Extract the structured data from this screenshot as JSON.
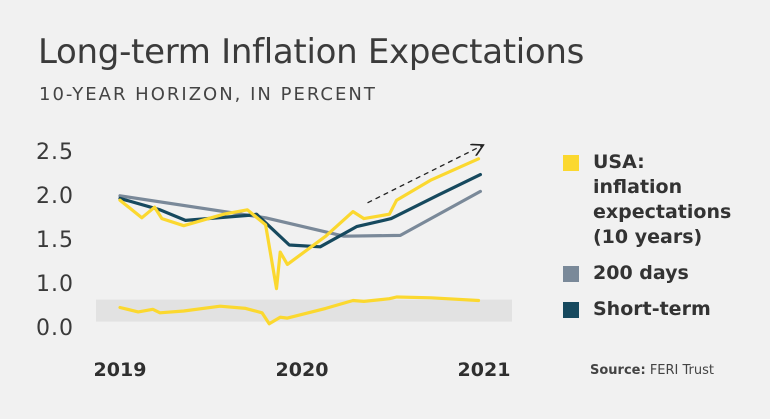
{
  "header": {
    "title": "Long-term Inflation Expectations",
    "subtitle": "10-YEAR HORIZON, IN PERCENT"
  },
  "source": {
    "label": "Source:",
    "value": "FERI Trust"
  },
  "colors": {
    "usa": "#fbd82f",
    "days200": "#7a8999",
    "shortterm": "#16495e",
    "band": "#e2e2e2",
    "text": "#333333"
  },
  "chart_data": {
    "type": "line",
    "title": "Long-term Inflation Expectations",
    "subtitle": "10-YEAR HORIZON, IN PERCENT",
    "xlabel": "",
    "ylabel": "",
    "x_ticks": [
      "2019",
      "2020",
      "2021"
    ],
    "x_range": [
      2019.0,
      2021.0
    ],
    "y_ticks": [
      "2.5",
      "2.0",
      "1.5",
      "1.0",
      "0.0"
    ],
    "ylim": [
      0.0,
      2.5
    ],
    "grid": false,
    "legend_position": "right",
    "series": [
      {
        "name": "USA: inflation expectations (10 years)",
        "legend_lines": [
          "USA:",
          "inflation",
          "expectations",
          "(10 years)"
        ],
        "color": "#fbd82f",
        "x": [
          2019.0,
          2019.12,
          2019.19,
          2019.23,
          2019.35,
          2019.57,
          2019.7,
          2019.8,
          2019.86,
          2019.88,
          2019.92,
          2020.13,
          2020.28,
          2020.34,
          2020.48,
          2020.52,
          2020.71,
          2020.97
        ],
        "y": [
          1.93,
          1.73,
          1.85,
          1.72,
          1.64,
          1.77,
          1.82,
          1.65,
          0.85,
          1.34,
          1.2,
          1.52,
          1.8,
          1.72,
          1.77,
          1.93,
          2.16,
          2.4
        ]
      },
      {
        "name": "200 days",
        "legend_lines": [
          "200 days"
        ],
        "color": "#7a8999",
        "x": [
          2019.0,
          2019.8,
          2020.23,
          2020.54,
          2020.98
        ],
        "y": [
          1.98,
          1.73,
          1.52,
          1.53,
          2.03
        ]
      },
      {
        "name": "Short-term",
        "legend_lines": [
          "Short-term"
        ],
        "color": "#16495e",
        "x": [
          2019.0,
          2019.22,
          2019.36,
          2019.72,
          2019.75,
          2019.93,
          2020.1,
          2020.3,
          2020.49,
          2020.75,
          2020.98
        ],
        "y": [
          1.95,
          1.82,
          1.7,
          1.76,
          1.77,
          1.42,
          1.4,
          1.63,
          1.72,
          1.99,
          2.22
        ]
      }
    ],
    "lower_band": {
      "description_range": [
        0.1,
        0.6
      ],
      "series": {
        "name": "USA lower",
        "color": "#fbd82f",
        "x": [
          2019.0,
          2019.1,
          2019.18,
          2019.22,
          2019.35,
          2019.55,
          2019.69,
          2019.78,
          2019.82,
          2019.88,
          2019.92,
          2020.13,
          2020.28,
          2020.34,
          2020.48,
          2020.52,
          2020.71,
          2020.97
        ],
        "y": [
          0.42,
          0.32,
          0.38,
          0.3,
          0.34,
          0.45,
          0.4,
          0.3,
          0.05,
          0.2,
          0.18,
          0.4,
          0.58,
          0.56,
          0.62,
          0.66,
          0.64,
          0.58
        ]
      }
    },
    "annotation": {
      "type": "trend-arrow",
      "from": [
        2020.36,
        1.9
      ],
      "to": [
        2020.99,
        2.55
      ]
    }
  }
}
